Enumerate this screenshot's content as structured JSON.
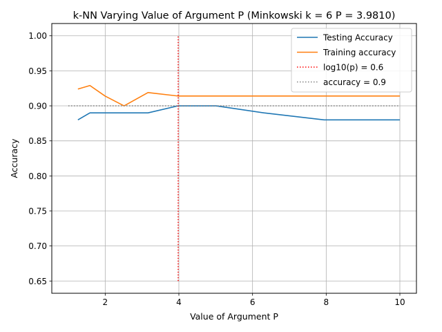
{
  "chart_data": {
    "type": "line",
    "title": "k-NN Varying Value of Argument P (Minkowski k = 6 P = 3.9810)",
    "xlabel": "Value of Argument P",
    "ylabel": "Accuracy",
    "xlim": [
      0.55,
      10.45
    ],
    "ylim": [
      0.6325,
      1.0175
    ],
    "xticks": [
      2,
      4,
      6,
      8,
      10
    ],
    "xtick_labels": [
      "2",
      "4",
      "6",
      "8",
      "10"
    ],
    "yticks": [
      0.65,
      0.7,
      0.75,
      0.8,
      0.85,
      0.9,
      0.95,
      1.0
    ],
    "ytick_labels": [
      "0.65",
      "0.70",
      "0.75",
      "0.80",
      "0.85",
      "0.90",
      "0.95",
      "1.00"
    ],
    "grid": true,
    "legend_position": "top-right",
    "series": [
      {
        "name": "Testing Accuracy",
        "color": "#1f77b4",
        "style": "solid",
        "x": [
          1.259,
          1.585,
          1.995,
          2.512,
          3.162,
          3.981,
          5.012,
          6.31,
          7.943,
          10.0
        ],
        "y": [
          0.88,
          0.89,
          0.89,
          0.89,
          0.89,
          0.9,
          0.9,
          0.89,
          0.88,
          0.88
        ]
      },
      {
        "name": "Training accuracy",
        "color": "#ff7f0e",
        "style": "solid",
        "x": [
          1.259,
          1.585,
          1.995,
          2.512,
          3.162,
          3.981,
          5.012,
          6.31,
          7.943,
          10.0
        ],
        "y": [
          0.924,
          0.929,
          0.914,
          0.9,
          0.919,
          0.914,
          0.914,
          0.914,
          0.914,
          0.914
        ]
      }
    ],
    "reference_lines": [
      {
        "name": "log10(p) = 0.6",
        "orientation": "vertical",
        "x": 3.981,
        "y_from": 0.65,
        "y_to": 1.0,
        "color": "#ff0000",
        "style": "dotted"
      },
      {
        "name": "accuracy = 0.9",
        "orientation": "horizontal",
        "y": 0.9,
        "x_from": 1.0,
        "x_to": 10.0,
        "color": "#808080",
        "style": "dotted"
      }
    ]
  }
}
